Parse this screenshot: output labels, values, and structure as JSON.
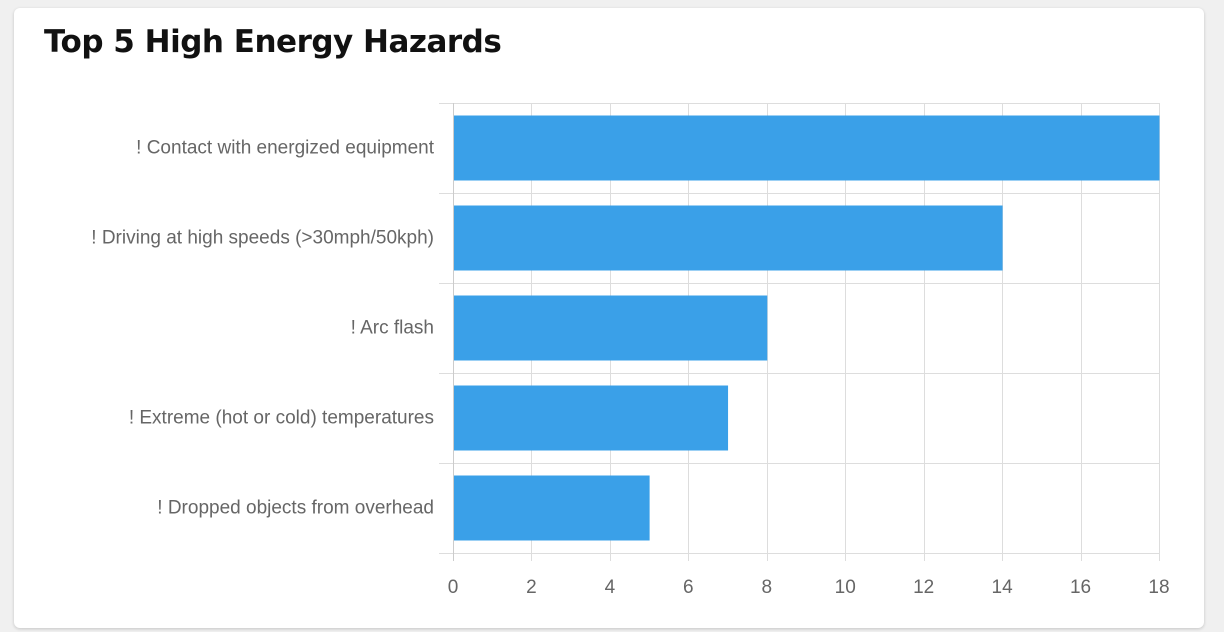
{
  "card": {
    "title": "Top 5 High Energy Hazards"
  },
  "chart_data": {
    "type": "bar",
    "orientation": "horizontal",
    "title": "Top 5 High Energy Hazards",
    "categories": [
      "! Contact with energized equipment",
      "! Driving at high speeds (>30mph/50kph)",
      "! Arc flash",
      "! Extreme (hot or cold) temperatures",
      "! Dropped objects from overhead"
    ],
    "values": [
      18,
      14,
      8,
      7,
      5
    ],
    "xlim": [
      0,
      18
    ],
    "xticks": [
      0,
      2,
      4,
      6,
      8,
      10,
      12,
      14,
      16,
      18
    ],
    "grid": true,
    "legend": "none",
    "bar_color": "#3aa0e8"
  }
}
